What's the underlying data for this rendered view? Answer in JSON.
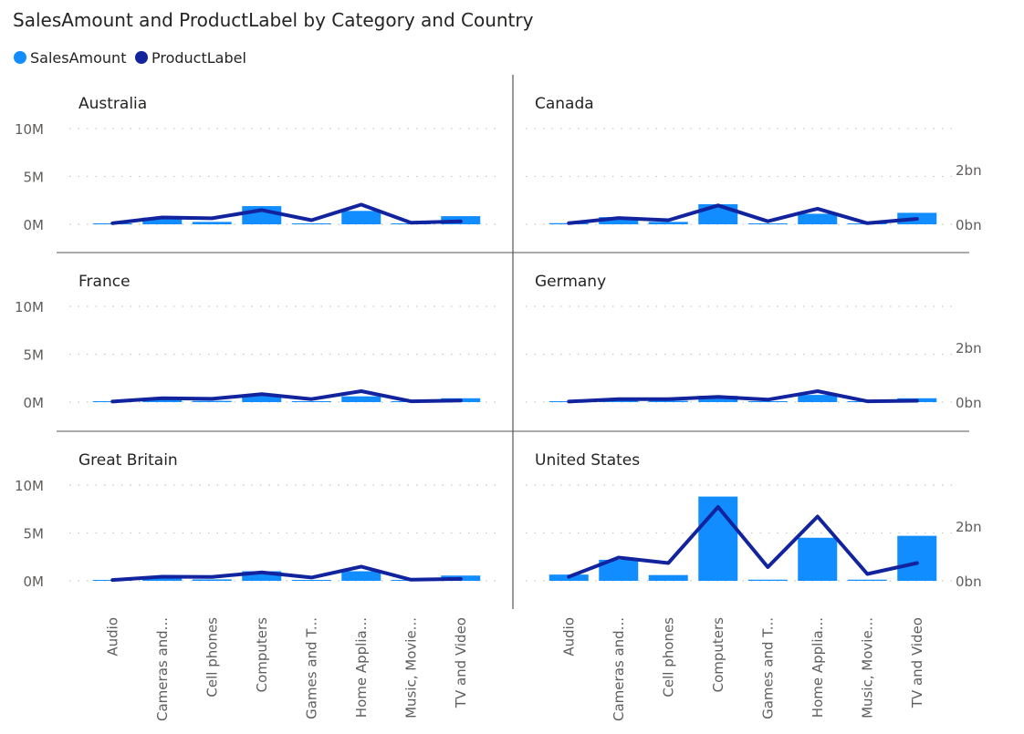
{
  "title": "SalesAmount and ProductLabel by Category and Country",
  "legend": [
    {
      "label": "SalesAmount",
      "color": "#118DFF"
    },
    {
      "label": "ProductLabel",
      "color": "#12239E"
    }
  ],
  "chart_data": {
    "type": "bar",
    "subtype": "small-multiples combo (bar + line)",
    "layout": "2 columns x 3 rows",
    "categories": [
      "Audio",
      "Cameras and...",
      "Cell phones",
      "Computers",
      "Games and T...",
      "Home Applia...",
      "Music, Movie...",
      "TV and Video"
    ],
    "left_axis": {
      "ticks": [
        "10M",
        "5M",
        "0M"
      ],
      "range": [
        0,
        10000000
      ]
    },
    "right_axis": {
      "ticks": [
        "2bn",
        "0bn"
      ],
      "range": [
        0,
        3500000000
      ]
    },
    "grid": "dotted horizontal",
    "panels": [
      {
        "country": "Australia",
        "SalesAmount": [
          100000,
          700000,
          250000,
          1900000,
          80000,
          1400000,
          80000,
          850000
        ],
        "ProductLabel": [
          40000000,
          250000000,
          220000000,
          520000000,
          150000000,
          720000000,
          60000000,
          110000000
        ]
      },
      {
        "country": "Canada",
        "SalesAmount": [
          120000,
          750000,
          250000,
          2100000,
          90000,
          1100000,
          90000,
          1200000
        ],
        "ProductLabel": [
          40000000,
          230000000,
          150000000,
          690000000,
          110000000,
          570000000,
          40000000,
          200000000
        ]
      },
      {
        "country": "France",
        "SalesAmount": [
          60000,
          280000,
          130000,
          700000,
          40000,
          600000,
          40000,
          400000
        ],
        "ProductLabel": [
          20000000,
          140000000,
          120000000,
          290000000,
          110000000,
          400000000,
          30000000,
          60000000
        ]
      },
      {
        "country": "Germany",
        "SalesAmount": [
          70000,
          300000,
          140000,
          650000,
          45000,
          750000,
          45000,
          400000
        ],
        "ProductLabel": [
          20000000,
          110000000,
          110000000,
          190000000,
          90000000,
          400000000,
          30000000,
          50000000
        ]
      },
      {
        "country": "Great Britain",
        "SalesAmount": [
          90000,
          400000,
          150000,
          1000000,
          50000,
          1000000,
          50000,
          550000
        ],
        "ProductLabel": [
          30000000,
          150000000,
          140000000,
          310000000,
          120000000,
          520000000,
          40000000,
          70000000
        ]
      },
      {
        "country": "United States",
        "SalesAmount": [
          650000,
          2200000,
          600000,
          8800000,
          120000,
          4500000,
          120000,
          4700000
        ],
        "ProductLabel": [
          150000000,
          850000000,
          650000000,
          2700000000,
          500000000,
          2350000000,
          250000000,
          650000000
        ]
      }
    ]
  }
}
